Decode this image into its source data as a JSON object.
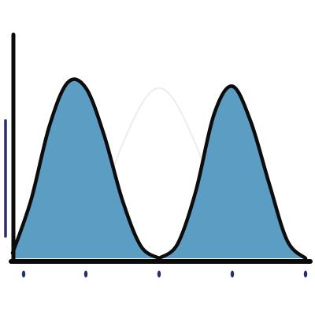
{
  "theme": {
    "fill": "#5B9DC3",
    "outline": "#0c0c0c",
    "axis": "#0a0a0a",
    "tick": "#2b2d6b",
    "side_bar": "#2b2d6b",
    "ghost_curve": "#ececec"
  },
  "chart_data": {
    "type": "area",
    "title": "",
    "xlabel": "",
    "ylabel": "",
    "xlim": [
      0,
      4
    ],
    "ylim": [
      0,
      1
    ],
    "x_ticks": [
      0,
      1,
      2,
      3,
      4
    ],
    "x_tick_labels": [
      "",
      "",
      "",
      "",
      ""
    ],
    "grid": false,
    "legend": "none",
    "series": [
      {
        "x": [
          0,
          0.25,
          0.5,
          0.75,
          1.0,
          1.25,
          1.5,
          1.75,
          2.0
        ],
        "y": [
          0.03,
          0.33,
          0.75,
          1.0,
          0.97,
          0.7,
          0.33,
          0.07,
          0.0
        ]
      },
      {
        "x": [
          2.0,
          2.25,
          2.5,
          2.75,
          3.0,
          3.25,
          3.5,
          3.75,
          4.0
        ],
        "y": [
          0.0,
          0.08,
          0.38,
          0.82,
          0.98,
          0.78,
          0.43,
          0.1,
          0.0
        ]
      }
    ],
    "ghost_series": {
      "x": [
        1.0,
        1.5,
        2.0,
        2.5,
        3.0
      ],
      "y": [
        0.0,
        0.65,
        0.97,
        0.65,
        0.0
      ]
    }
  }
}
